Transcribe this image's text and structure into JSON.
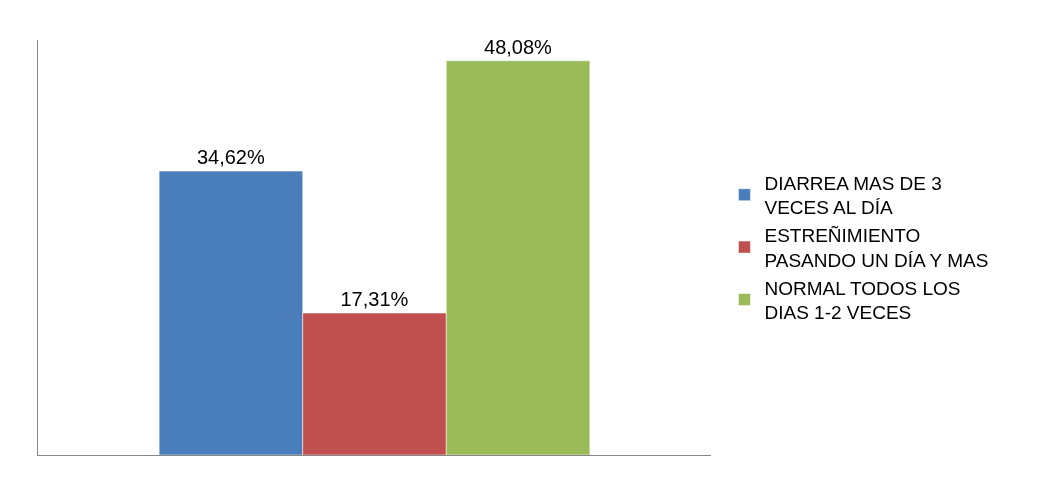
{
  "chart_data": {
    "type": "bar",
    "categories": [
      null
    ],
    "series": [
      {
        "name": "DIARREA MAS DE 3 VECES AL DÍA",
        "color": "#4a7ebb",
        "values": [
          34.62
        ],
        "value_labels": [
          "34,62%"
        ]
      },
      {
        "name": "ESTREÑIMIENTO PASANDO UN DÍA Y MAS",
        "color": "#c0504d",
        "values": [
          17.31
        ],
        "value_labels": [
          "17,31%"
        ]
      },
      {
        "name": "NORMAL TODOS LOS DIAS 1-2 VECES",
        "color": "#9bbb59",
        "values": [
          48.08
        ],
        "value_labels": [
          "48,08%"
        ]
      }
    ],
    "legend": "right",
    "tick_labels": false
  }
}
